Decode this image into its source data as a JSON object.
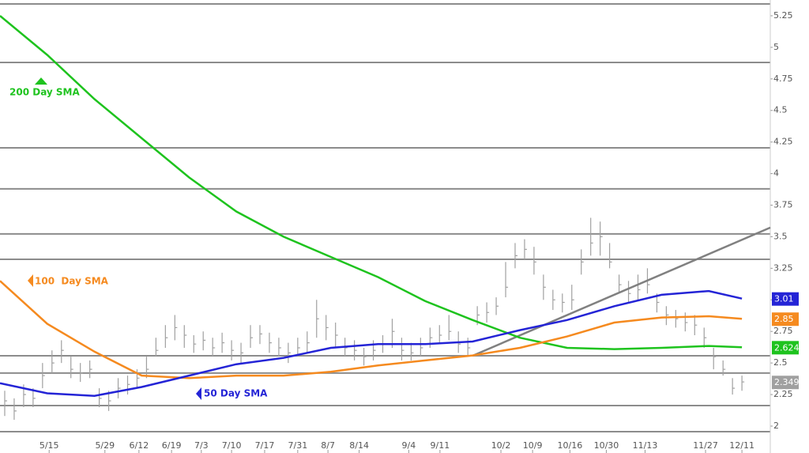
{
  "chart_data": {
    "type": "ohlc",
    "xlim": [
      0,
      163
    ],
    "ylim": [
      1.787,
      5.375
    ],
    "yticks": [
      2,
      2.25,
      2.5,
      2.75,
      3,
      3.25,
      3.5,
      3.75,
      4,
      4.25,
      4.5,
      4.75,
      5,
      5.25
    ],
    "xticks": [
      {
        "value": 10.4,
        "label": "5/15"
      },
      {
        "value": 22.2,
        "label": "5/29"
      },
      {
        "value": 29.4,
        "label": "6/12"
      },
      {
        "value": 36.3,
        "label": "6/19"
      },
      {
        "value": 42.6,
        "label": "7/3"
      },
      {
        "value": 49,
        "label": "7/10"
      },
      {
        "value": 56,
        "label": "7/17"
      },
      {
        "value": 63,
        "label": "7/31"
      },
      {
        "value": 69.4,
        "label": "8/7"
      },
      {
        "value": 76,
        "label": "8/14"
      },
      {
        "value": 86.5,
        "label": "9/4"
      },
      {
        "value": 93.1,
        "label": "9/11"
      },
      {
        "value": 106,
        "label": "10/2"
      },
      {
        "value": 112.7,
        "label": "10/9"
      },
      {
        "value": 120.6,
        "label": "10/16"
      },
      {
        "value": 128.3,
        "label": "10/30"
      },
      {
        "value": 136.5,
        "label": "11/13"
      },
      {
        "value": 149.3,
        "label": "11/27"
      },
      {
        "value": 157,
        "label": "12/11"
      }
    ],
    "hlines": [
      5.344,
      4.88,
      4.204,
      3.879,
      3.522,
      3.321,
      2.557,
      2.42,
      2.163,
      1.956
    ],
    "trendline": {
      "color": "#808080",
      "x": [
        100,
        163
      ],
      "values": [
        2.557,
        3.572
      ]
    },
    "bars": {
      "color": "#a0a0a0",
      "x": [
        1,
        3,
        5,
        7,
        9,
        11,
        13,
        15,
        17,
        19,
        21,
        23,
        25,
        27,
        29,
        31,
        33,
        35,
        37,
        39,
        41,
        43,
        45,
        47,
        49,
        51,
        53,
        55,
        57,
        59,
        61,
        63,
        65,
        67,
        69,
        71,
        73,
        75,
        77,
        79,
        81,
        83,
        85,
        87,
        89,
        91,
        93,
        95,
        97,
        99,
        101,
        103,
        105,
        107,
        109,
        111,
        113,
        115,
        117,
        119,
        121,
        123,
        125,
        127,
        129,
        131,
        133,
        135,
        137,
        139,
        141,
        143,
        145,
        147,
        149,
        151,
        153,
        155,
        157
      ],
      "high": [
        2.28,
        2.22,
        2.33,
        2.3,
        2.5,
        2.6,
        2.68,
        2.55,
        2.5,
        2.52,
        2.3,
        2.28,
        2.38,
        2.4,
        2.45,
        2.55,
        2.7,
        2.8,
        2.88,
        2.8,
        2.72,
        2.75,
        2.7,
        2.74,
        2.68,
        2.66,
        2.8,
        2.8,
        2.74,
        2.7,
        2.66,
        2.7,
        2.75,
        3.0,
        2.88,
        2.82,
        2.7,
        2.68,
        2.62,
        2.68,
        2.72,
        2.85,
        2.7,
        2.66,
        2.7,
        2.78,
        2.8,
        2.88,
        2.75,
        2.7,
        2.95,
        2.98,
        3.02,
        3.3,
        3.45,
        3.48,
        3.42,
        3.2,
        3.08,
        3.05,
        3.12,
        3.4,
        3.65,
        3.62,
        3.45,
        3.2,
        3.15,
        3.2,
        3.25,
        3.05,
        2.95,
        2.92,
        2.9,
        2.88,
        2.78,
        2.62,
        2.52,
        2.38,
        2.4
      ],
      "low": [
        2.08,
        2.05,
        2.15,
        2.15,
        2.3,
        2.42,
        2.5,
        2.38,
        2.35,
        2.38,
        2.15,
        2.12,
        2.22,
        2.25,
        2.3,
        2.38,
        2.55,
        2.62,
        2.68,
        2.62,
        2.58,
        2.6,
        2.55,
        2.58,
        2.52,
        2.5,
        2.62,
        2.65,
        2.58,
        2.55,
        2.5,
        2.55,
        2.58,
        2.7,
        2.68,
        2.62,
        2.55,
        2.52,
        2.48,
        2.52,
        2.58,
        2.62,
        2.52,
        2.52,
        2.55,
        2.62,
        2.65,
        2.68,
        2.58,
        2.56,
        2.8,
        2.82,
        2.88,
        3.02,
        3.25,
        3.32,
        3.2,
        3.0,
        2.92,
        2.9,
        2.92,
        3.2,
        3.35,
        3.35,
        3.25,
        3.05,
        2.98,
        3.0,
        3.05,
        2.9,
        2.8,
        2.78,
        2.75,
        2.72,
        2.62,
        2.45,
        2.4,
        2.25,
        2.28
      ],
      "close": [
        2.2,
        2.12,
        2.25,
        2.22,
        2.4,
        2.5,
        2.6,
        2.45,
        2.42,
        2.45,
        2.22,
        2.2,
        2.3,
        2.33,
        2.38,
        2.45,
        2.6,
        2.7,
        2.78,
        2.72,
        2.65,
        2.68,
        2.62,
        2.66,
        2.6,
        2.58,
        2.7,
        2.73,
        2.66,
        2.62,
        2.58,
        2.62,
        2.66,
        2.85,
        2.78,
        2.72,
        2.62,
        2.6,
        2.55,
        2.6,
        2.65,
        2.75,
        2.6,
        2.58,
        2.62,
        2.7,
        2.72,
        2.75,
        2.65,
        2.62,
        2.88,
        2.9,
        2.95,
        3.1,
        3.35,
        3.4,
        3.3,
        3.1,
        3.0,
        2.98,
        3.0,
        3.3,
        3.45,
        3.5,
        3.3,
        3.12,
        3.05,
        3.08,
        3.12,
        2.98,
        2.88,
        2.85,
        2.82,
        2.8,
        2.7,
        2.55,
        2.45,
        2.3,
        2.35
      ],
      "last_value": 2.349
    },
    "series": [
      {
        "name": "200 Day SMA",
        "color": "#1ec31e",
        "x": [
          0,
          10,
          20,
          30,
          40,
          50,
          60,
          70,
          80,
          90,
          100,
          110,
          120,
          130,
          140,
          150,
          157
        ],
        "values": [
          5.25,
          4.94,
          4.59,
          4.28,
          3.97,
          3.7,
          3.5,
          3.34,
          3.18,
          2.99,
          2.84,
          2.7,
          2.62,
          2.61,
          2.62,
          2.635,
          2.624
        ],
        "last_value": 2.624
      },
      {
        "name": "100  Day SMA",
        "color": "#f58a1f",
        "x": [
          0,
          10,
          20,
          30,
          40,
          50,
          60,
          70,
          80,
          90,
          100,
          110,
          120,
          130,
          140,
          150,
          157
        ],
        "values": [
          3.15,
          2.81,
          2.59,
          2.4,
          2.38,
          2.4,
          2.4,
          2.43,
          2.48,
          2.52,
          2.56,
          2.62,
          2.71,
          2.82,
          2.86,
          2.87,
          2.85
        ],
        "last_value": 2.85
      },
      {
        "name": "50 Day SMA",
        "color": "#2424d6",
        "x": [
          0,
          10,
          20,
          30,
          40,
          50,
          60,
          70,
          80,
          90,
          100,
          110,
          120,
          130,
          140,
          150,
          157
        ],
        "values": [
          2.34,
          2.26,
          2.24,
          2.31,
          2.4,
          2.49,
          2.54,
          2.62,
          2.65,
          2.65,
          2.67,
          2.76,
          2.84,
          2.95,
          3.04,
          3.07,
          3.01
        ],
        "last_value": 3.01
      }
    ]
  }
}
